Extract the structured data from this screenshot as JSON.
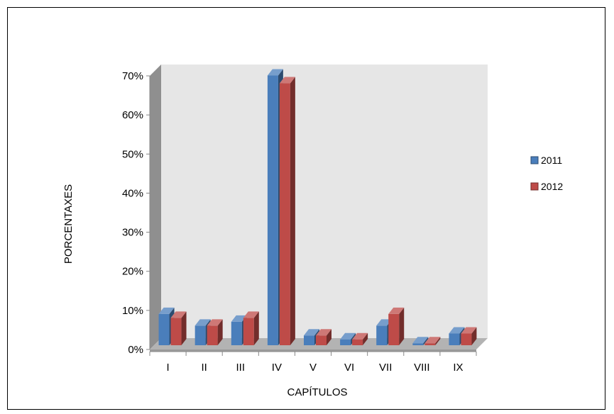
{
  "chart_data": {
    "type": "bar",
    "title": "",
    "xlabel": "CAPÍTULOS",
    "ylabel": "PORCENTAXES",
    "categories": [
      "I",
      "II",
      "III",
      "IV",
      "V",
      "VI",
      "VII",
      "VIII",
      "IX"
    ],
    "series": [
      {
        "name": "2011",
        "color": "#4a7ebb",
        "values": [
          8,
          5,
          6,
          69,
          2.5,
          1.5,
          5,
          0.5,
          3
        ]
      },
      {
        "name": "2012",
        "color": "#be4b48",
        "values": [
          7,
          5,
          7,
          67,
          2.5,
          1.5,
          8,
          0.5,
          3
        ]
      }
    ],
    "ylim": [
      0,
      70
    ],
    "yticks": [
      "0%",
      "10%",
      "20%",
      "30%",
      "40%",
      "50%",
      "60%",
      "70%"
    ],
    "grid": false,
    "legend": "right",
    "style": "3d-clustered-column"
  }
}
